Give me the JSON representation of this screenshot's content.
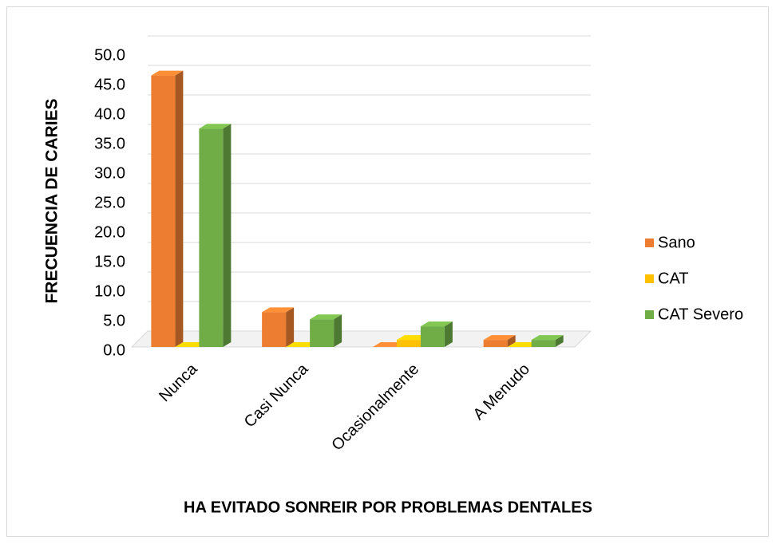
{
  "chart_data": {
    "type": "bar3d",
    "categories": [
      "Nunca",
      "Casi Nunca",
      "Ocasionalmente",
      "A Menudo"
    ],
    "series": [
      {
        "name": "Sano",
        "color": "#ed7d31",
        "values": [
          46.0,
          5.9,
          0,
          1.2
        ]
      },
      {
        "name": "CAT",
        "color": "#ffc000",
        "values": [
          0,
          0,
          1.2,
          0
        ]
      },
      {
        "name": "CAT Severo",
        "color": "#70ad47",
        "values": [
          37.0,
          4.7,
          3.5,
          1.2
        ]
      }
    ],
    "ylim": [
      0,
      50
    ],
    "yticks": [
      {
        "value": 0,
        "label": "0.0"
      },
      {
        "value": 5,
        "label": "5.0"
      },
      {
        "value": 10,
        "label": "10.0"
      },
      {
        "value": 15,
        "label": "15.0"
      },
      {
        "value": 20,
        "label": "20.0"
      },
      {
        "value": 25,
        "label": "25.0"
      },
      {
        "value": 30,
        "label": "30.0"
      },
      {
        "value": 35,
        "label": "35.0"
      },
      {
        "value": 40,
        "label": "40.0"
      },
      {
        "value": 45,
        "label": "45.0"
      },
      {
        "value": 50,
        "label": "50.0"
      }
    ],
    "ylabel": "FRECUENCIA DE CARIES",
    "xlabel": "HA EVITADO SONREIR POR PROBLEMAS DENTALES",
    "grid": true,
    "legend": "right"
  }
}
